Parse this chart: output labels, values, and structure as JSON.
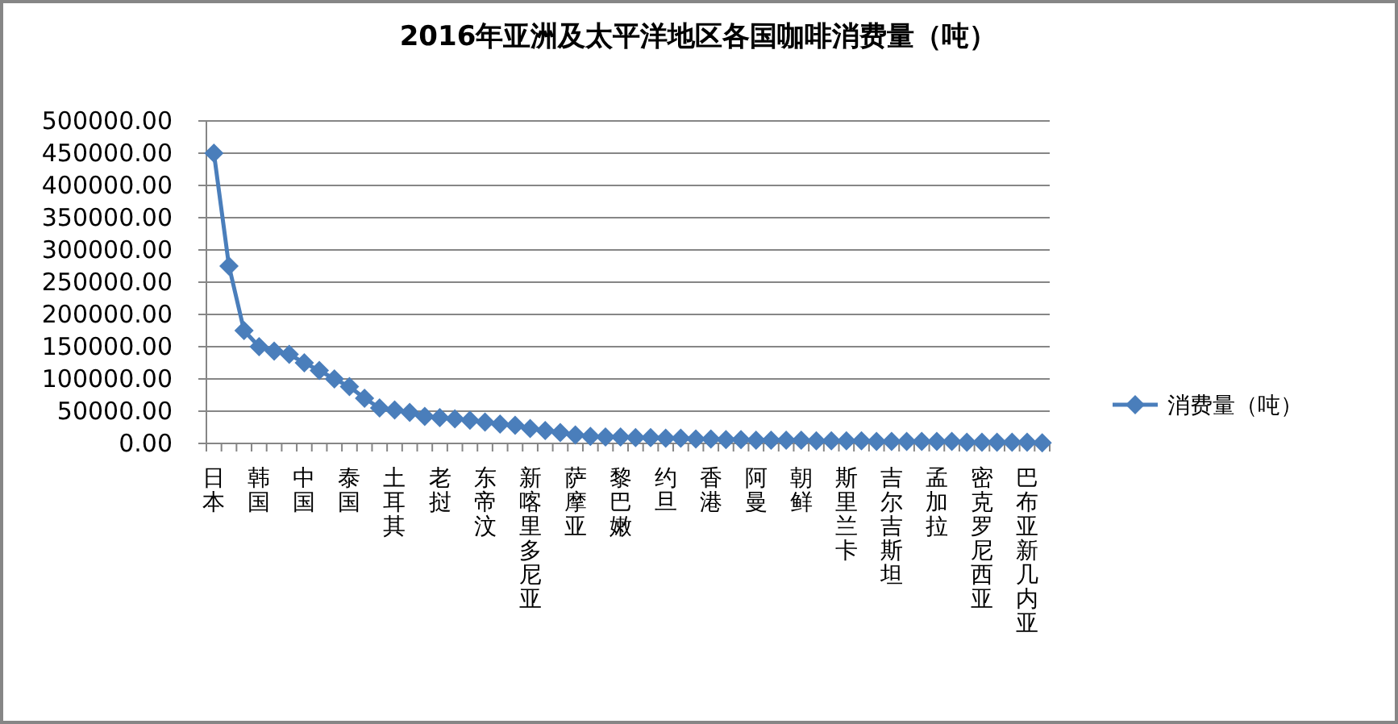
{
  "chart_data": {
    "type": "line",
    "title": "2016年亚洲及太平洋地区各国咖啡消费量（吨）",
    "categories": [
      "日本",
      null,
      null,
      "韩国",
      null,
      null,
      "中国",
      null,
      null,
      "泰国",
      null,
      null,
      "土耳其",
      null,
      null,
      "老挝",
      null,
      null,
      "东帝汶",
      null,
      null,
      "新喀里多尼亚",
      null,
      null,
      "萨摩亚",
      null,
      null,
      "黎巴嫩",
      null,
      null,
      "约旦",
      null,
      null,
      "香港",
      null,
      null,
      "阿曼",
      null,
      null,
      "朝鲜",
      null,
      null,
      "斯里兰卡",
      null,
      null,
      "吉尔吉斯坦",
      null,
      null,
      "孟加拉",
      null,
      null,
      "密克罗尼西亚",
      null,
      null,
      "巴布亚新几内亚",
      null
    ],
    "series": [
      {
        "name": "消费量（吨）",
        "color": "#4a7ebb",
        "values": [
          450000,
          275000,
          175000,
          150000,
          143000,
          138000,
          125000,
          113000,
          100000,
          88000,
          70000,
          55000,
          52000,
          48000,
          42000,
          40000,
          38000,
          36000,
          33000,
          30000,
          28000,
          23000,
          20000,
          17000,
          13000,
          11000,
          10000,
          10000,
          9000,
          9000,
          8000,
          8000,
          7000,
          7000,
          6000,
          6000,
          5000,
          5000,
          5000,
          5000,
          4000,
          4000,
          4000,
          4000,
          3000,
          3000,
          3000,
          3000,
          3000,
          3000,
          2000,
          2000,
          2000,
          2000,
          2000,
          1000
        ]
      }
    ],
    "ylim": [
      0,
      500000
    ],
    "yticks": [
      {
        "value": 0,
        "label": "0.00"
      },
      {
        "value": 50000,
        "label": "50000.00"
      },
      {
        "value": 100000,
        "label": "100000.00"
      },
      {
        "value": 150000,
        "label": "150000.00"
      },
      {
        "value": 200000,
        "label": "200000.00"
      },
      {
        "value": 250000,
        "label": "250000.00"
      },
      {
        "value": 300000,
        "label": "300000.00"
      },
      {
        "value": 350000,
        "label": "350000.00"
      },
      {
        "value": 400000,
        "label": "400000.00"
      },
      {
        "value": 450000,
        "label": "450000.00"
      },
      {
        "value": 500000,
        "label": "500000.00"
      }
    ],
    "grid": "y",
    "legend": "right",
    "marker": "diamond",
    "line_style": "solid"
  }
}
